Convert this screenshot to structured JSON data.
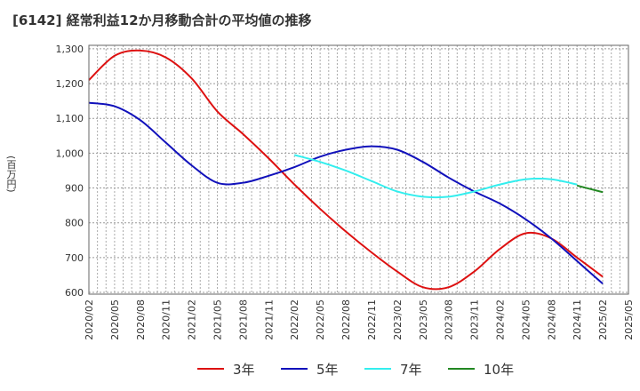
{
  "title": "[6142]  経常利益12か月移動合計の平均値の推移",
  "chart_data": {
    "type": "line",
    "title": "[6142]  経常利益12か月移動合計の平均値の推移",
    "ylabel": "(百万円)",
    "xlabel": "",
    "ylim": [
      595,
      1310
    ],
    "yticks": [
      600,
      700,
      800,
      900,
      1000,
      1100,
      1200,
      1300
    ],
    "ytick_labels": [
      "600",
      "700",
      "800",
      "900",
      "1,000",
      "1,100",
      "1,200",
      "1,300"
    ],
    "xtick_labels": [
      "2020/02",
      "2020/05",
      "2020/08",
      "2020/11",
      "2021/02",
      "2021/05",
      "2021/08",
      "2021/11",
      "2022/02",
      "2022/05",
      "2022/08",
      "2022/11",
      "2023/02",
      "2023/05",
      "2023/08",
      "2023/11",
      "2024/02",
      "2024/05",
      "2024/08",
      "2024/11",
      "2025/02",
      "2025/05"
    ],
    "grid": true,
    "legend_position": "bottom",
    "series": [
      {
        "name": "3年",
        "color": "#dd1111",
        "x": [
          "2020/02",
          "2020/05",
          "2020/08",
          "2020/11",
          "2021/02",
          "2021/05",
          "2021/08",
          "2021/11",
          "2022/02",
          "2022/05",
          "2022/08",
          "2022/11",
          "2023/02",
          "2023/05",
          "2023/08",
          "2023/11",
          "2024/02",
          "2024/05",
          "2024/08",
          "2024/11",
          "2025/02"
        ],
        "values": [
          1210,
          1280,
          1295,
          1275,
          1215,
          1120,
          1055,
          985,
          910,
          840,
          775,
          715,
          660,
          615,
          615,
          660,
          725,
          770,
          755,
          700,
          645
        ]
      },
      {
        "name": "5年",
        "color": "#1111bb",
        "x": [
          "2020/02",
          "2020/05",
          "2020/08",
          "2020/11",
          "2021/02",
          "2021/05",
          "2021/08",
          "2021/11",
          "2022/02",
          "2022/05",
          "2022/08",
          "2022/11",
          "2023/02",
          "2023/05",
          "2023/08",
          "2023/11",
          "2024/02",
          "2024/05",
          "2024/08",
          "2024/11",
          "2025/02"
        ],
        "values": [
          1145,
          1135,
          1095,
          1030,
          965,
          915,
          915,
          935,
          960,
          990,
          1010,
          1020,
          1010,
          975,
          930,
          890,
          855,
          810,
          755,
          690,
          625
        ]
      },
      {
        "name": "7年",
        "color": "#33eeee",
        "x": [
          "2022/02",
          "2022/05",
          "2022/08",
          "2022/11",
          "2023/02",
          "2023/05",
          "2023/08",
          "2023/11",
          "2024/02",
          "2024/05",
          "2024/08",
          "2024/11"
        ],
        "values": [
          995,
          975,
          950,
          920,
          890,
          875,
          875,
          890,
          910,
          925,
          925,
          910
        ]
      },
      {
        "name": "10年",
        "color": "#228822",
        "x": [
          "2024/11",
          "2025/02"
        ],
        "values": [
          907,
          888
        ]
      }
    ]
  }
}
